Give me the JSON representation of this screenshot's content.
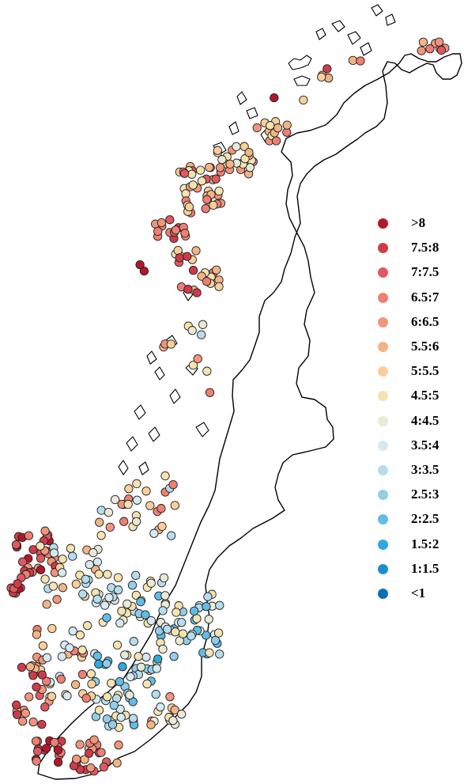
{
  "map": {
    "region": "Norway",
    "marker_style": "circle",
    "outline_color": "#000000"
  },
  "legend": {
    "items": [
      {
        "label": ">8",
        "color": "#b2182b"
      },
      {
        "label": "7.5:8",
        "color": "#cf3b48"
      },
      {
        "label": "7:7.5",
        "color": "#e0595f"
      },
      {
        "label": "6.5:7",
        "color": "#ee7f73"
      },
      {
        "label": "6:6.5",
        "color": "#f2957c"
      },
      {
        "label": "5.5:6",
        "color": "#f3b485"
      },
      {
        "label": "5:5.5",
        "color": "#f8cf9b"
      },
      {
        "label": "4.5:5",
        "color": "#f5e3b0"
      },
      {
        "label": "4:4.5",
        "color": "#e9ead5"
      },
      {
        "label": "3.5:4",
        "color": "#d6e9f2"
      },
      {
        "label": "3:3.5",
        "color": "#b7dcee"
      },
      {
        "label": "2.5:3",
        "color": "#92cdea"
      },
      {
        "label": "2:2.5",
        "color": "#5fbde6"
      },
      {
        "label": "1.5:2",
        "color": "#2fa8df"
      },
      {
        "label": "1:1.5",
        "color": "#1a8fd0"
      },
      {
        "label": "<1",
        "color": "#0b6fb8"
      }
    ]
  }
}
